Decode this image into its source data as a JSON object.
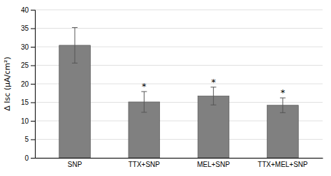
{
  "chart_data": {
    "type": "bar",
    "categories": [
      "SNP",
      "TTX+SNP",
      "MEL+SNP",
      "TTX+MEL+SNP"
    ],
    "values": [
      30.4,
      15.1,
      16.7,
      14.2
    ],
    "errors": [
      4.8,
      2.8,
      2.4,
      2.0
    ],
    "color": "#808080",
    "annotations": [
      null,
      "*",
      "*",
      "*"
    ],
    "ylabel": "Δ Isc (μA/cm²)",
    "ylim": [
      0,
      40
    ],
    "yticks": [
      0,
      5,
      10,
      15,
      20,
      25,
      30,
      35,
      40
    ],
    "grid": true
  }
}
